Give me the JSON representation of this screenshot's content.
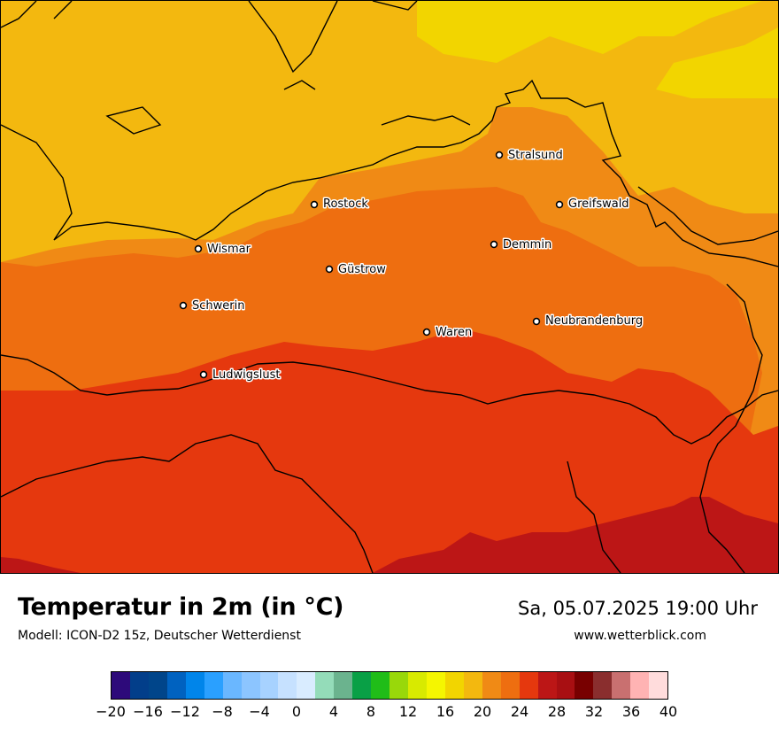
{
  "map": {
    "cities": [
      {
        "name": "Stralsund",
        "dot": "city-dot"
      },
      {
        "name": "Rostock",
        "dot": "city-dot"
      },
      {
        "name": "Greifswald",
        "dot": "city-dot"
      },
      {
        "name": "Wismar",
        "dot": "city-dot"
      },
      {
        "name": "Demmin",
        "dot": "city-dot"
      },
      {
        "name": "Güstrow",
        "dot": "city-dot"
      },
      {
        "name": "Schwerin",
        "dot": "city-dot"
      },
      {
        "name": "Neubrandenburg",
        "dot": "city-dot"
      },
      {
        "name": "Waren",
        "dot": "city-dot"
      },
      {
        "name": "Ludwigslust",
        "dot": "city-dot"
      }
    ],
    "band_colors": {
      "t16_18": "#f2d500",
      "t18_20": "#f3b80f",
      "t20_22": "#f08a15",
      "t22_24": "#ee6e10",
      "t24_26": "#e5380e",
      "t26_28": "#bc1616"
    }
  },
  "footer": {
    "title": "Temperatur in 2m (in °C)",
    "subtitle": "Modell: ICON-D2 15z, Deutscher Wetterdienst",
    "datetime": "Sa, 05.07.2025 19:00 Uhr",
    "website": "www.wetterblick.com"
  },
  "colorscale": {
    "colors": [
      "#2d0a7a",
      "#023e8a",
      "#00458a",
      "#0062c0",
      "#0085ea",
      "#2aa0ff",
      "#6ab7ff",
      "#8cc5ff",
      "#a7d2ff",
      "#c6e1ff",
      "#d9ecff",
      "#94dcb9",
      "#6bb38e",
      "#09a046",
      "#20bd18",
      "#99d80a",
      "#d8ea00",
      "#f5f600",
      "#f2d500",
      "#f3b80f",
      "#f08a15",
      "#ee6e10",
      "#e5380e",
      "#bc1616",
      "#a80f12",
      "#780000",
      "#8a2e2e",
      "#c97070",
      "#ffb3b3",
      "#ffdcdc"
    ],
    "ticks": [
      "−20",
      "−16",
      "−12",
      "−8",
      "−4",
      "0",
      "4",
      "8",
      "12",
      "16",
      "20",
      "24",
      "28",
      "32",
      "36",
      "40"
    ]
  }
}
